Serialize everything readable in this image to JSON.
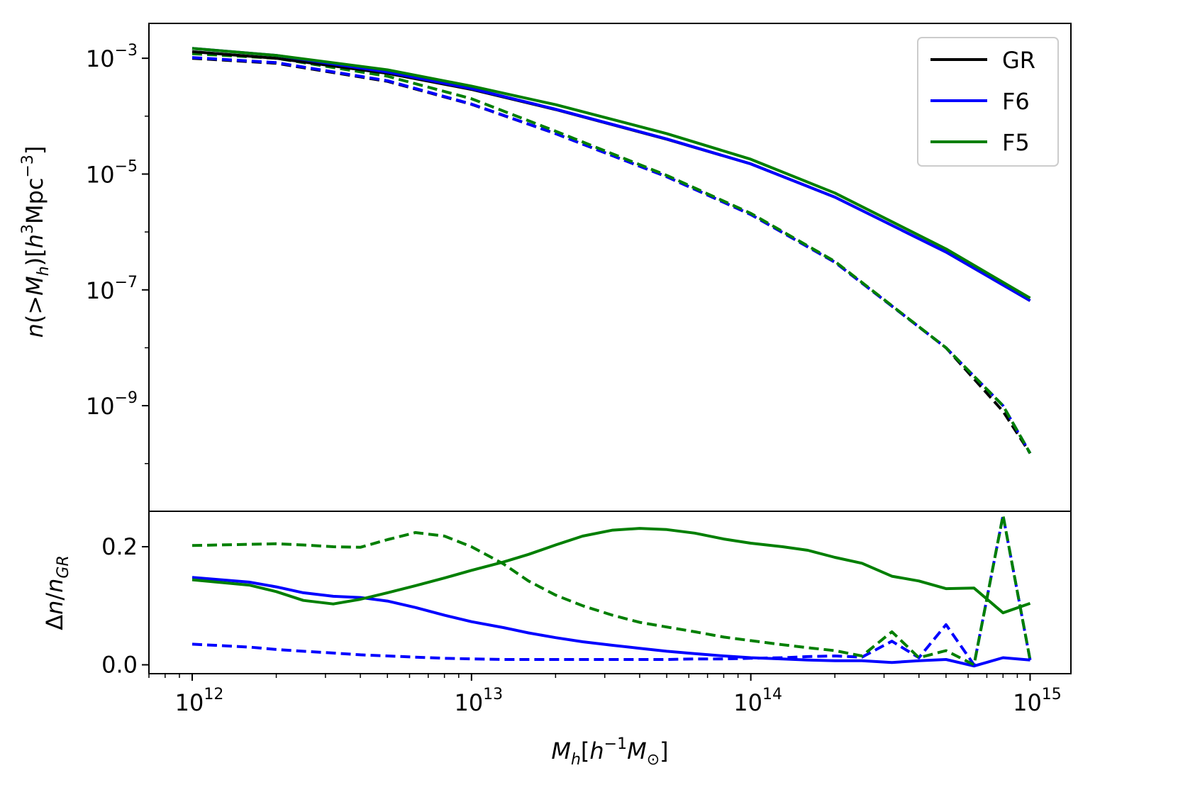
{
  "chart_data": [
    {
      "type": "line",
      "panel": "top",
      "xscale": "log",
      "yscale": "log",
      "xlim": [
        700000000000.0,
        1400000000000000.0
      ],
      "ylim": [
        1.5e-11,
        0.004
      ],
      "xlabel": "",
      "ylabel": "n(>M_h)[h^3 Mpc^-3]",
      "yticks": [
        0.001,
        1e-05,
        1e-07,
        1e-09
      ],
      "ytick_labels": [
        {
          "base": "10",
          "exp": "−3"
        },
        {
          "base": "10",
          "exp": "−5"
        },
        {
          "base": "10",
          "exp": "−7"
        },
        {
          "base": "10",
          "exp": "−9"
        }
      ],
      "grid": false,
      "legend": {
        "placement": "top-right",
        "entries": [
          "GR",
          "F6",
          "F5"
        ]
      },
      "series": [
        {
          "name": "GR",
          "color": "#000000",
          "dash": "solid",
          "x": [
            1000000000000.0,
            2000000000000.0,
            5000000000000.0,
            10000000000000.0,
            20000000000000.0,
            50000000000000.0,
            100000000000000.0,
            200000000000000.0,
            500000000000000.0,
            1000000000000000.0
          ],
          "y": [
            0.0013,
            0.001,
            0.00055,
            0.00029,
            0.00013,
            4e-05,
            1.5e-05,
            4e-06,
            4.5e-07,
            6.5e-08
          ]
        },
        {
          "name": "F6",
          "color": "#0000ff",
          "dash": "solid",
          "x": [
            1000000000000.0,
            2000000000000.0,
            5000000000000.0,
            10000000000000.0,
            20000000000000.0,
            50000000000000.0,
            100000000000000.0,
            200000000000000.0,
            500000000000000.0,
            1000000000000000.0
          ],
          "y": [
            0.00148,
            0.00112,
            0.00058,
            0.0003,
            0.000132,
            4.05e-05,
            1.5e-05,
            4e-06,
            4.5e-07,
            6.5e-08
          ]
        },
        {
          "name": "F5",
          "color": "#007f00",
          "dash": "solid",
          "x": [
            1000000000000.0,
            2000000000000.0,
            5000000000000.0,
            10000000000000.0,
            20000000000000.0,
            50000000000000.0,
            100000000000000.0,
            200000000000000.0,
            500000000000000.0,
            1000000000000000.0
          ],
          "y": [
            0.00148,
            0.00112,
            0.00063,
            0.00033,
            0.000158,
            5e-05,
            1.8e-05,
            4.7e-06,
            5.1e-07,
            7.2e-08
          ]
        },
        {
          "name": "GR",
          "color": "#000000",
          "dash": "dashed",
          "x": [
            1000000000000.0,
            2000000000000.0,
            5000000000000.0,
            10000000000000.0,
            20000000000000.0,
            50000000000000.0,
            100000000000000.0,
            200000000000000.0,
            500000000000000.0,
            800000000000000.0,
            1000000000000000.0
          ],
          "y": [
            0.001,
            0.00082,
            0.0004,
            0.00016,
            5e-05,
            9e-06,
            2e-06,
            3e-07,
            1e-08,
            8e-10,
            1.5e-10
          ]
        },
        {
          "name": "F6",
          "color": "#0000ff",
          "dash": "dashed",
          "x": [
            1000000000000.0,
            2000000000000.0,
            5000000000000.0,
            10000000000000.0,
            20000000000000.0,
            50000000000000.0,
            100000000000000.0,
            200000000000000.0,
            500000000000000.0,
            800000000000000.0,
            1000000000000000.0
          ],
          "y": [
            0.00103,
            0.00084,
            0.00041,
            0.000162,
            5e-05,
            9e-06,
            2e-06,
            3e-07,
            1e-08,
            1e-09,
            1.5e-10
          ]
        },
        {
          "name": "F5",
          "color": "#007f00",
          "dash": "dashed",
          "x": [
            1000000000000.0,
            2000000000000.0,
            5000000000000.0,
            10000000000000.0,
            20000000000000.0,
            50000000000000.0,
            100000000000000.0,
            200000000000000.0,
            500000000000000.0,
            800000000000000.0,
            1000000000000000.0
          ],
          "y": [
            0.0012,
            0.001,
            0.00049,
            0.0002,
            5.5e-05,
            9.5e-06,
            2.1e-06,
            3.1e-07,
            1e-08,
            1e-09,
            1.5e-10
          ]
        }
      ]
    },
    {
      "type": "line",
      "panel": "bottom",
      "xscale": "log",
      "yscale": "linear",
      "xlim": [
        700000000000.0,
        1400000000000000.0
      ],
      "ylim": [
        -0.015,
        0.26
      ],
      "xlabel": "M_h[h^-1 M_sun]",
      "ylabel": "Δn/n_GR",
      "yticks": [
        0.0,
        0.2
      ],
      "ytick_labels": [
        "0.0",
        "0.2"
      ],
      "xticks": [
        1000000000000.0,
        10000000000000.0,
        100000000000000.0,
        1000000000000000.0
      ],
      "xtick_labels": [
        {
          "base": "10",
          "exp": "12"
        },
        {
          "base": "10",
          "exp": "13"
        },
        {
          "base": "10",
          "exp": "14"
        },
        {
          "base": "10",
          "exp": "15"
        }
      ],
      "grid": false,
      "series": [
        {
          "name": "F6",
          "color": "#0000ff",
          "dash": "solid",
          "x": [
            1000000000000.0,
            1600000000000.0,
            2000000000000.0,
            2500000000000.0,
            3200000000000.0,
            4000000000000.0,
            5000000000000.0,
            6300000000000.0,
            8000000000000.0,
            10000000000000.0,
            13000000000000.0,
            16000000000000.0,
            20000000000000.0,
            25000000000000.0,
            32000000000000.0,
            40000000000000.0,
            50000000000000.0,
            63000000000000.0,
            80000000000000.0,
            100000000000000.0,
            130000000000000.0,
            160000000000000.0,
            200000000000000.0,
            250000000000000.0,
            320000000000000.0,
            400000000000000.0,
            500000000000000.0,
            630000000000000.0,
            800000000000000.0,
            1000000000000000.0
          ],
          "y": [
            0.148,
            0.14,
            0.132,
            0.122,
            0.116,
            0.114,
            0.108,
            0.097,
            0.084,
            0.073,
            0.063,
            0.054,
            0.046,
            0.039,
            0.033,
            0.028,
            0.023,
            0.019,
            0.015,
            0.012,
            0.01,
            0.008,
            0.007,
            0.007,
            0.004,
            0.007,
            0.009,
            -0.002,
            0.012,
            0.008
          ]
        },
        {
          "name": "F5",
          "color": "#007f00",
          "dash": "solid",
          "x": [
            1000000000000.0,
            1600000000000.0,
            2000000000000.0,
            2500000000000.0,
            3200000000000.0,
            4000000000000.0,
            5000000000000.0,
            6300000000000.0,
            8000000000000.0,
            10000000000000.0,
            13000000000000.0,
            16000000000000.0,
            20000000000000.0,
            25000000000000.0,
            32000000000000.0,
            40000000000000.0,
            50000000000000.0,
            63000000000000.0,
            80000000000000.0,
            100000000000000.0,
            130000000000000.0,
            160000000000000.0,
            200000000000000.0,
            250000000000000.0,
            320000000000000.0,
            400000000000000.0,
            500000000000000.0,
            630000000000000.0,
            800000000000000.0,
            1000000000000000.0
          ],
          "y": [
            0.144,
            0.135,
            0.124,
            0.109,
            0.103,
            0.111,
            0.122,
            0.134,
            0.147,
            0.16,
            0.174,
            0.187,
            0.203,
            0.218,
            0.228,
            0.231,
            0.229,
            0.223,
            0.213,
            0.206,
            0.2,
            0.194,
            0.182,
            0.172,
            0.15,
            0.142,
            0.129,
            0.13,
            0.088,
            0.104
          ]
        },
        {
          "name": "F6",
          "color": "#0000ff",
          "dash": "dashed",
          "x": [
            1000000000000.0,
            1600000000000.0,
            2000000000000.0,
            2500000000000.0,
            3200000000000.0,
            4000000000000.0,
            5000000000000.0,
            6300000000000.0,
            8000000000000.0,
            10000000000000.0,
            13000000000000.0,
            16000000000000.0,
            20000000000000.0,
            25000000000000.0,
            32000000000000.0,
            40000000000000.0,
            50000000000000.0,
            63000000000000.0,
            80000000000000.0,
            100000000000000.0,
            130000000000000.0,
            160000000000000.0,
            200000000000000.0,
            250000000000000.0,
            320000000000000.0,
            400000000000000.0,
            500000000000000.0,
            630000000000000.0,
            800000000000000.0,
            1000000000000000.0
          ],
          "y": [
            0.035,
            0.03,
            0.026,
            0.023,
            0.02,
            0.017,
            0.015,
            0.013,
            0.011,
            0.01,
            0.009,
            0.009,
            0.009,
            0.009,
            0.009,
            0.009,
            0.009,
            0.01,
            0.01,
            0.011,
            0.012,
            0.014,
            0.015,
            0.013,
            0.04,
            0.012,
            0.068,
            0.0,
            0.253,
            0.008
          ]
        },
        {
          "name": "F5",
          "color": "#007f00",
          "dash": "dashed",
          "x": [
            1000000000000.0,
            1600000000000.0,
            2000000000000.0,
            2500000000000.0,
            3200000000000.0,
            4000000000000.0,
            5000000000000.0,
            6300000000000.0,
            8000000000000.0,
            10000000000000.0,
            13000000000000.0,
            16000000000000.0,
            20000000000000.0,
            25000000000000.0,
            32000000000000.0,
            40000000000000.0,
            50000000000000.0,
            63000000000000.0,
            80000000000000.0,
            100000000000000.0,
            130000000000000.0,
            160000000000000.0,
            200000000000000.0,
            250000000000000.0,
            320000000000000.0,
            400000000000000.0,
            500000000000000.0,
            630000000000000.0,
            800000000000000.0,
            1000000000000000.0
          ],
          "y": [
            0.202,
            0.204,
            0.205,
            0.203,
            0.2,
            0.199,
            0.212,
            0.224,
            0.218,
            0.2,
            0.171,
            0.142,
            0.118,
            0.1,
            0.084,
            0.072,
            0.064,
            0.056,
            0.047,
            0.041,
            0.034,
            0.029,
            0.024,
            0.015,
            0.056,
            0.012,
            0.024,
            0.0,
            0.253,
            0.008
          ]
        }
      ]
    }
  ]
}
